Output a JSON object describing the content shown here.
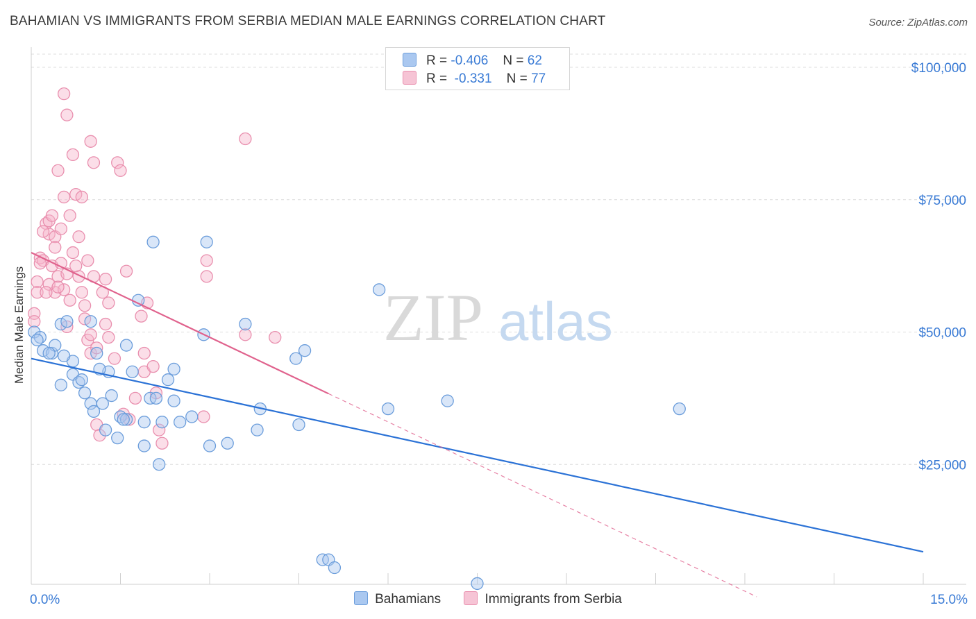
{
  "header": {
    "title": "BAHAMIAN VS IMMIGRANTS FROM SERBIA MEDIAN MALE EARNINGS CORRELATION CHART",
    "source": "Source: ZipAtlas.com"
  },
  "legend": {
    "rows": [
      {
        "r_label": "R =",
        "r_value": "-0.406",
        "n_label": "N =",
        "n_value": "62"
      },
      {
        "r_label": "R =",
        "r_value": " -0.331",
        "n_label": "N =",
        "n_value": "77"
      }
    ]
  },
  "watermark": {
    "zip": "ZIP",
    "atlas": "atlas"
  },
  "colors": {
    "blue_fill": "#aac8f0",
    "blue_stroke": "#6b9ddb",
    "blue_line": "#2b72d6",
    "pink_fill": "#f6b6cb",
    "pink_stroke": "#e98fae",
    "pink_line": "#e0628d",
    "grid": "#dcdcdc",
    "axis_text": "#3a7bd5"
  },
  "chart_data": {
    "type": "scatter",
    "title": "BAHAMIAN VS IMMIGRANTS FROM SERBIA MEDIAN MALE EARNINGS CORRELATION CHART",
    "xlabel": "",
    "ylabel": "Median Male Earnings",
    "xlim": [
      0,
      15
    ],
    "ylim": [
      0,
      105000
    ],
    "x_tick_labels": [
      "0.0%",
      "15.0%"
    ],
    "y_ticks": [
      25000,
      50000,
      75000,
      100000
    ],
    "y_tick_labels": [
      "$25,000",
      "$50,000",
      "$75,000",
      "$100,000"
    ],
    "legend_position": "top-center",
    "series": [
      {
        "name": "Bahamians",
        "color": "#6b9ddb",
        "r": -0.406,
        "n": 62,
        "trend": {
          "x0": 0,
          "y0": 45000,
          "x1": 15,
          "y1": 8500,
          "solid_to": 15
        },
        "points": [
          [
            0.05,
            50000
          ],
          [
            0.15,
            49000
          ],
          [
            0.2,
            46500
          ],
          [
            0.35,
            46000
          ],
          [
            0.4,
            47500
          ],
          [
            0.1,
            48500
          ],
          [
            0.5,
            51500
          ],
          [
            0.6,
            52000
          ],
          [
            0.7,
            44500
          ],
          [
            0.5,
            40000
          ],
          [
            0.7,
            42000
          ],
          [
            0.8,
            40500
          ],
          [
            0.9,
            38500
          ],
          [
            1.0,
            36500
          ],
          [
            1.05,
            35000
          ],
          [
            1.1,
            46000
          ],
          [
            1.2,
            36500
          ],
          [
            1.3,
            42500
          ],
          [
            1.35,
            38000
          ],
          [
            1.25,
            31500
          ],
          [
            1.45,
            30000
          ],
          [
            1.5,
            34000
          ],
          [
            1.6,
            33500
          ],
          [
            1.6,
            47500
          ],
          [
            1.7,
            42500
          ],
          [
            1.8,
            56000
          ],
          [
            1.9,
            28500
          ],
          [
            1.9,
            33000
          ],
          [
            2.0,
            37500
          ],
          [
            2.05,
            67000
          ],
          [
            2.15,
            25000
          ],
          [
            2.2,
            33000
          ],
          [
            2.3,
            41000
          ],
          [
            2.4,
            43000
          ],
          [
            2.4,
            37000
          ],
          [
            2.5,
            33000
          ],
          [
            2.7,
            34000
          ],
          [
            2.9,
            49500
          ],
          [
            2.95,
            67000
          ],
          [
            3.0,
            28500
          ],
          [
            3.3,
            29000
          ],
          [
            3.6,
            51500
          ],
          [
            3.8,
            31500
          ],
          [
            3.85,
            35500
          ],
          [
            4.45,
            45000
          ],
          [
            4.6,
            46500
          ],
          [
            4.5,
            32500
          ],
          [
            4.9,
            7000
          ],
          [
            5.0,
            7000
          ],
          [
            5.1,
            5500
          ],
          [
            5.85,
            58000
          ],
          [
            6.0,
            35500
          ],
          [
            7.0,
            37000
          ],
          [
            7.5,
            2500
          ],
          [
            10.9,
            35500
          ],
          [
            1.0,
            52000
          ],
          [
            0.55,
            45500
          ],
          [
            0.3,
            46000
          ],
          [
            1.55,
            33500
          ],
          [
            2.1,
            37500
          ],
          [
            0.85,
            41000
          ],
          [
            1.15,
            43000
          ]
        ]
      },
      {
        "name": "Immigrants from Serbia",
        "color": "#e98fae",
        "r": -0.331,
        "n": 77,
        "trend": {
          "x0": 0,
          "y0": 65000,
          "x1": 12.2,
          "y1": 0,
          "solid_to": 5.0
        },
        "points": [
          [
            0.05,
            53500
          ],
          [
            0.05,
            52000
          ],
          [
            0.1,
            59500
          ],
          [
            0.1,
            57500
          ],
          [
            0.15,
            64000
          ],
          [
            0.2,
            63500
          ],
          [
            0.25,
            70500
          ],
          [
            0.3,
            71000
          ],
          [
            0.3,
            68500
          ],
          [
            0.35,
            72000
          ],
          [
            0.4,
            68000
          ],
          [
            0.35,
            62500
          ],
          [
            0.4,
            57500
          ],
          [
            0.45,
            60500
          ],
          [
            0.5,
            63000
          ],
          [
            0.45,
            80500
          ],
          [
            0.55,
            58000
          ],
          [
            0.6,
            61000
          ],
          [
            0.6,
            51000
          ],
          [
            0.65,
            72000
          ],
          [
            0.7,
            65000
          ],
          [
            0.55,
            75500
          ],
          [
            0.5,
            69500
          ],
          [
            0.55,
            95000
          ],
          [
            0.6,
            91000
          ],
          [
            0.7,
            83500
          ],
          [
            0.75,
            76000
          ],
          [
            0.8,
            60500
          ],
          [
            0.8,
            68000
          ],
          [
            0.85,
            75500
          ],
          [
            0.85,
            57500
          ],
          [
            0.9,
            55000
          ],
          [
            0.9,
            52500
          ],
          [
            0.95,
            63500
          ],
          [
            0.95,
            48500
          ],
          [
            1.0,
            49500
          ],
          [
            1.0,
            86000
          ],
          [
            1.05,
            82000
          ],
          [
            1.0,
            46000
          ],
          [
            1.1,
            47000
          ],
          [
            1.1,
            32500
          ],
          [
            1.15,
            30500
          ],
          [
            1.2,
            57500
          ],
          [
            1.25,
            60000
          ],
          [
            1.25,
            51500
          ],
          [
            1.3,
            49000
          ],
          [
            1.3,
            55500
          ],
          [
            1.4,
            45000
          ],
          [
            1.45,
            82000
          ],
          [
            1.5,
            80500
          ],
          [
            1.55,
            34500
          ],
          [
            1.6,
            61500
          ],
          [
            1.65,
            33500
          ],
          [
            1.75,
            37500
          ],
          [
            1.85,
            53000
          ],
          [
            1.9,
            46000
          ],
          [
            1.9,
            42500
          ],
          [
            1.95,
            55500
          ],
          [
            2.05,
            43500
          ],
          [
            2.1,
            38500
          ],
          [
            2.15,
            31500
          ],
          [
            2.2,
            29000
          ],
          [
            2.9,
            34000
          ],
          [
            2.95,
            63500
          ],
          [
            2.95,
            60500
          ],
          [
            3.6,
            86500
          ],
          [
            3.6,
            49500
          ],
          [
            4.1,
            49000
          ],
          [
            0.2,
            69000
          ],
          [
            0.3,
            59000
          ],
          [
            0.4,
            66000
          ],
          [
            0.15,
            63000
          ],
          [
            0.75,
            62500
          ],
          [
            1.05,
            60500
          ],
          [
            0.45,
            58500
          ],
          [
            0.25,
            57500
          ],
          [
            0.65,
            56000
          ]
        ]
      }
    ]
  },
  "bottom_legend": {
    "items": [
      {
        "label": "Bahamians"
      },
      {
        "label": "Immigrants from Serbia"
      }
    ]
  }
}
